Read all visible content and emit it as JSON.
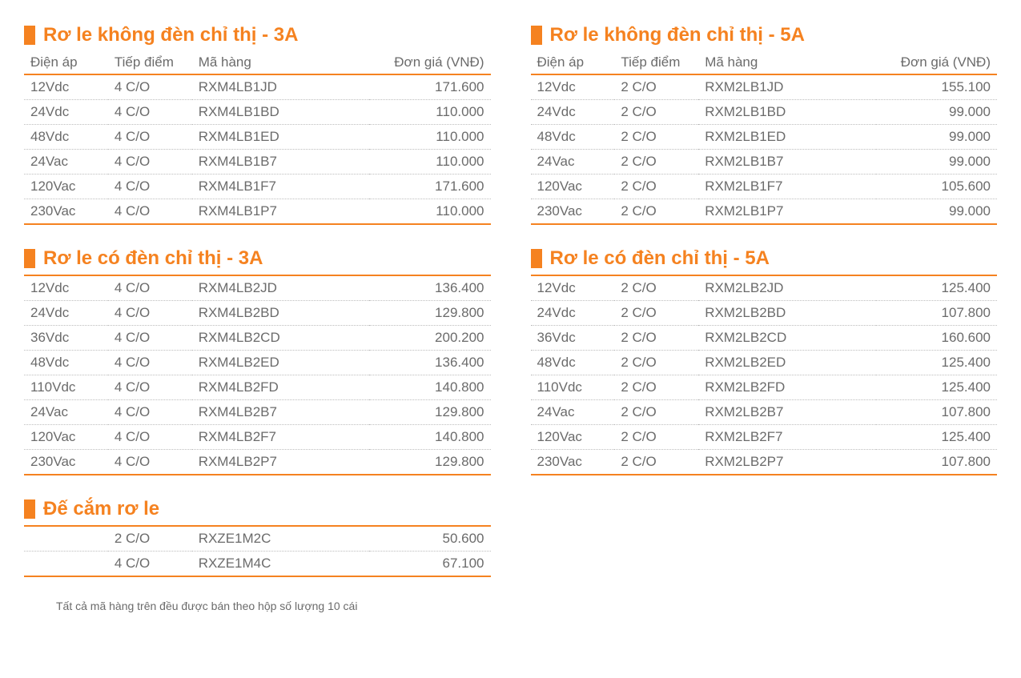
{
  "colors": {
    "accent": "#f58220",
    "text": "#6b6b6b",
    "bg": "#ffffff",
    "dotted": "#bdbdbd"
  },
  "typography": {
    "title_fontsize": 24,
    "body_fontsize": 17,
    "footnote_fontsize": 14,
    "font_family": "Arial"
  },
  "columns": {
    "voltage": "Điện áp",
    "contact": "Tiếp điểm",
    "code": "Mã hàng",
    "price": "Đơn giá (VNĐ)"
  },
  "sections": [
    {
      "title": "Rơ le không đèn chỉ thị - 3A",
      "show_header": true,
      "rows": [
        [
          "12Vdc",
          "4 C/O",
          "RXM4LB1JD",
          "171.600"
        ],
        [
          "24Vdc",
          "4 C/O",
          "RXM4LB1BD",
          "110.000"
        ],
        [
          "48Vdc",
          "4 C/O",
          "RXM4LB1ED",
          "110.000"
        ],
        [
          "24Vac",
          "4 C/O",
          "RXM4LB1B7",
          "110.000"
        ],
        [
          "120Vac",
          "4 C/O",
          "RXM4LB1F7",
          "171.600"
        ],
        [
          "230Vac",
          "4 C/O",
          "RXM4LB1P7",
          "110.000"
        ]
      ]
    },
    {
      "title": "Rơ le không đèn chỉ thị - 5A",
      "show_header": true,
      "rows": [
        [
          "12Vdc",
          "2 C/O",
          "RXM2LB1JD",
          "155.100"
        ],
        [
          "24Vdc",
          "2 C/O",
          "RXM2LB1BD",
          "99.000"
        ],
        [
          "48Vdc",
          "2 C/O",
          "RXM2LB1ED",
          "99.000"
        ],
        [
          "24Vac",
          "2 C/O",
          "RXM2LB1B7",
          "99.000"
        ],
        [
          "120Vac",
          "2 C/O",
          "RXM2LB1F7",
          "105.600"
        ],
        [
          "230Vac",
          "2 C/O",
          "RXM2LB1P7",
          "99.000"
        ]
      ]
    },
    {
      "title": "Rơ le có đèn chỉ thị - 3A",
      "show_header": false,
      "rows": [
        [
          "12Vdc",
          "4 C/O",
          "RXM4LB2JD",
          "136.400"
        ],
        [
          "24Vdc",
          "4 C/O",
          "RXM4LB2BD",
          "129.800"
        ],
        [
          "36Vdc",
          "4 C/O",
          "RXM4LB2CD",
          "200.200"
        ],
        [
          "48Vdc",
          "4 C/O",
          "RXM4LB2ED",
          "136.400"
        ],
        [
          "110Vdc",
          "4 C/O",
          "RXM4LB2FD",
          "140.800"
        ],
        [
          "24Vac",
          "4 C/O",
          "RXM4LB2B7",
          "129.800"
        ],
        [
          "120Vac",
          "4 C/O",
          "RXM4LB2F7",
          "140.800"
        ],
        [
          "230Vac",
          "4 C/O",
          "RXM4LB2P7",
          "129.800"
        ]
      ]
    },
    {
      "title": "Rơ le có đèn chỉ thị - 5A",
      "show_header": false,
      "rows": [
        [
          "12Vdc",
          "2 C/O",
          "RXM2LB2JD",
          "125.400"
        ],
        [
          "24Vdc",
          "2 C/O",
          "RXM2LB2BD",
          "107.800"
        ],
        [
          "36Vdc",
          "2 C/O",
          "RXM2LB2CD",
          "160.600"
        ],
        [
          "48Vdc",
          "2 C/O",
          "RXM2LB2ED",
          "125.400"
        ],
        [
          "110Vdc",
          "2 C/O",
          "RXM2LB2FD",
          "125.400"
        ],
        [
          "24Vac",
          "2 C/O",
          "RXM2LB2B7",
          "107.800"
        ],
        [
          "120Vac",
          "2 C/O",
          "RXM2LB2F7",
          "125.400"
        ],
        [
          "230Vac",
          "2 C/O",
          "RXM2LB2P7",
          "107.800"
        ]
      ]
    },
    {
      "title": "Đế cắm rơ le",
      "show_header": false,
      "rows": [
        [
          "",
          "2 C/O",
          "RXZE1M2C",
          "50.600"
        ],
        [
          "",
          "4 C/O",
          "RXZE1M4C",
          "67.100"
        ]
      ]
    }
  ],
  "footnote": "Tất cả mã hàng trên đều được bán theo hộp số lượng 10 cái"
}
